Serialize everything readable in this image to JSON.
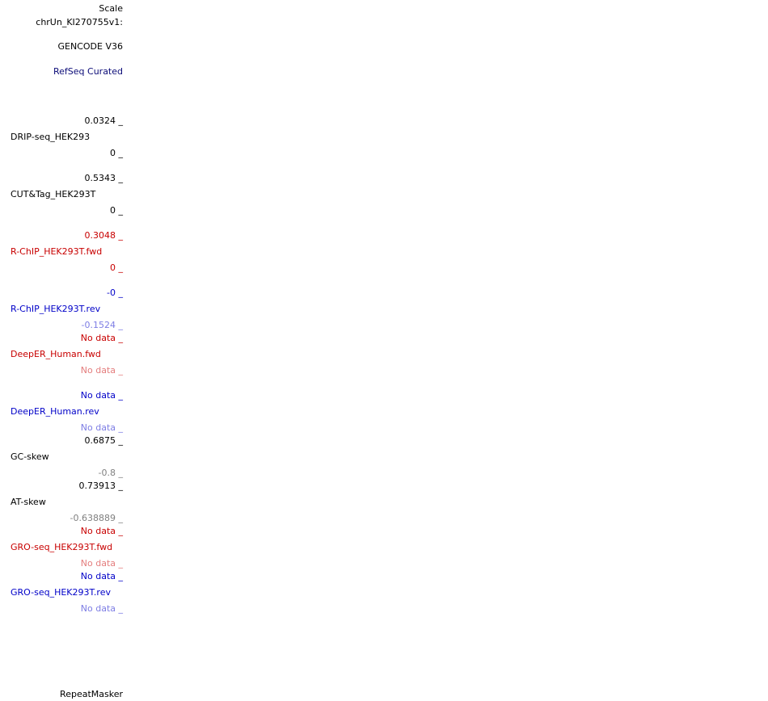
{
  "header": {
    "scale_label": "Scale",
    "chrom_label": "chrUn_KI270755v1:"
  },
  "gene_tracks": {
    "gencode_label": "GENCODE V36",
    "refseq_label": "RefSeq Curated"
  },
  "signal_tracks": [
    {
      "name": "DRIP-seq_HEK293",
      "max": "0.0324",
      "min": "0"
    },
    {
      "name": "CUT&Tag_HEK293T",
      "max": "0.5343",
      "min": "0"
    },
    {
      "name": "R-ChIP_HEK293T.fwd",
      "max": "0.3048",
      "min": "0"
    },
    {
      "name": "R-ChIP_HEK293T.rev",
      "max": "-0",
      "min": "-0.1524"
    },
    {
      "name": "DeepER_Human.fwd",
      "max": "No data",
      "min": "No data"
    },
    {
      "name": "DeepER_Human.rev",
      "max": "No data",
      "min": "No data"
    },
    {
      "name": "GC-skew",
      "max": "0.6875",
      "min": "-0.8"
    },
    {
      "name": "AT-skew",
      "max": "0.73913",
      "min": "-0.638889"
    },
    {
      "name": "GRO-seq_HEK293T.fwd",
      "max": "No data",
      "min": "No data"
    },
    {
      "name": "GRO-seq_HEK293T.rev",
      "max": "No data",
      "min": "No data"
    }
  ],
  "footer_tracks": {
    "repeatmasker_label": "RepeatMasker"
  },
  "tick_glyph": "_",
  "colors": {
    "black": "#000000",
    "navy": "#0c0c78",
    "red": "#c80000",
    "light_red": "#e47d7d",
    "blue": "#0000c8",
    "light_blue": "#7d7de4",
    "gray": "#808080"
  }
}
